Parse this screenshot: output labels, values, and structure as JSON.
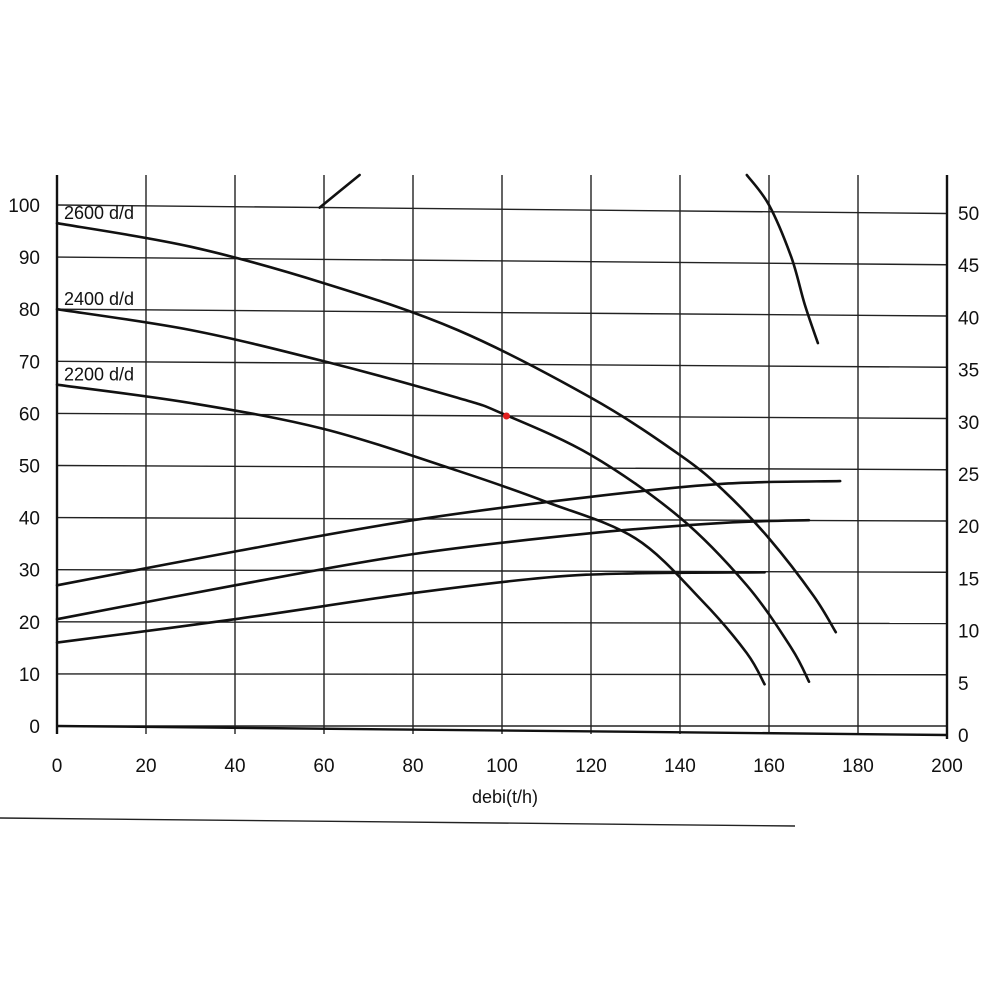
{
  "chart_data": {
    "type": "line",
    "xlabel": "debi(t/h)",
    "xlim": [
      0,
      200
    ],
    "ylim_left": [
      0,
      100
    ],
    "ylim_right": [
      0,
      50
    ],
    "x_ticks": [
      "0",
      "20",
      "40",
      "60",
      "80",
      "100",
      "120",
      "140",
      "160",
      "180",
      "200"
    ],
    "y_ticks_left": [
      "0",
      "10",
      "20",
      "30",
      "40",
      "50",
      "60",
      "70",
      "80",
      "90",
      "100"
    ],
    "y_ticks_right": [
      "0",
      "5",
      "10",
      "15",
      "20",
      "25",
      "30",
      "35",
      "40",
      "45",
      "50"
    ],
    "grid": true,
    "series": [
      {
        "name": "2600 d/d",
        "axis": "left",
        "points": [
          [
            0,
            96.5
          ],
          [
            30,
            92
          ],
          [
            60,
            85
          ],
          [
            90,
            76
          ],
          [
            120,
            63
          ],
          [
            140,
            52
          ],
          [
            150,
            45
          ],
          [
            160,
            36
          ],
          [
            170,
            25
          ],
          [
            175,
            18
          ]
        ]
      },
      {
        "name": "2400 d/d",
        "axis": "left",
        "points": [
          [
            0,
            80
          ],
          [
            30,
            76
          ],
          [
            60,
            70
          ],
          [
            90,
            63
          ],
          [
            100,
            60
          ],
          [
            120,
            52
          ],
          [
            140,
            40
          ],
          [
            155,
            27
          ],
          [
            165,
            15
          ],
          [
            169,
            8.5
          ]
        ]
      },
      {
        "name": "2200 d/d",
        "axis": "left",
        "points": [
          [
            0,
            65.5
          ],
          [
            30,
            62
          ],
          [
            60,
            57
          ],
          [
            90,
            49
          ],
          [
            110,
            43
          ],
          [
            130,
            36
          ],
          [
            145,
            24
          ],
          [
            155,
            14
          ],
          [
            159,
            8
          ]
        ]
      },
      {
        "name": "",
        "axis": "left",
        "points": [
          [
            0,
            27
          ],
          [
            40,
            33.5
          ],
          [
            80,
            39.5
          ],
          [
            120,
            44
          ],
          [
            150,
            46.5
          ],
          [
            176,
            47
          ]
        ]
      },
      {
        "name": "",
        "axis": "left",
        "points": [
          [
            0,
            20.5
          ],
          [
            40,
            27
          ],
          [
            80,
            33
          ],
          [
            120,
            37
          ],
          [
            150,
            39
          ],
          [
            169,
            39.5
          ]
        ]
      },
      {
        "name": "",
        "axis": "left",
        "points": [
          [
            0,
            16
          ],
          [
            40,
            20.5
          ],
          [
            80,
            25.5
          ],
          [
            110,
            28.5
          ],
          [
            130,
            29.3
          ],
          [
            159,
            29.5
          ]
        ]
      },
      {
        "name": "",
        "axis": "left",
        "points": [
          [
            59,
            99.5
          ],
          [
            68,
            107
          ]
        ]
      },
      {
        "name": "",
        "axis": "left",
        "points": [
          [
            155,
            107
          ],
          [
            160,
            100
          ],
          [
            165,
            90
          ],
          [
            168,
            81
          ],
          [
            171,
            73.5
          ]
        ]
      }
    ],
    "marker": {
      "x": 101,
      "y": 59.5,
      "color": "#e02020"
    }
  }
}
